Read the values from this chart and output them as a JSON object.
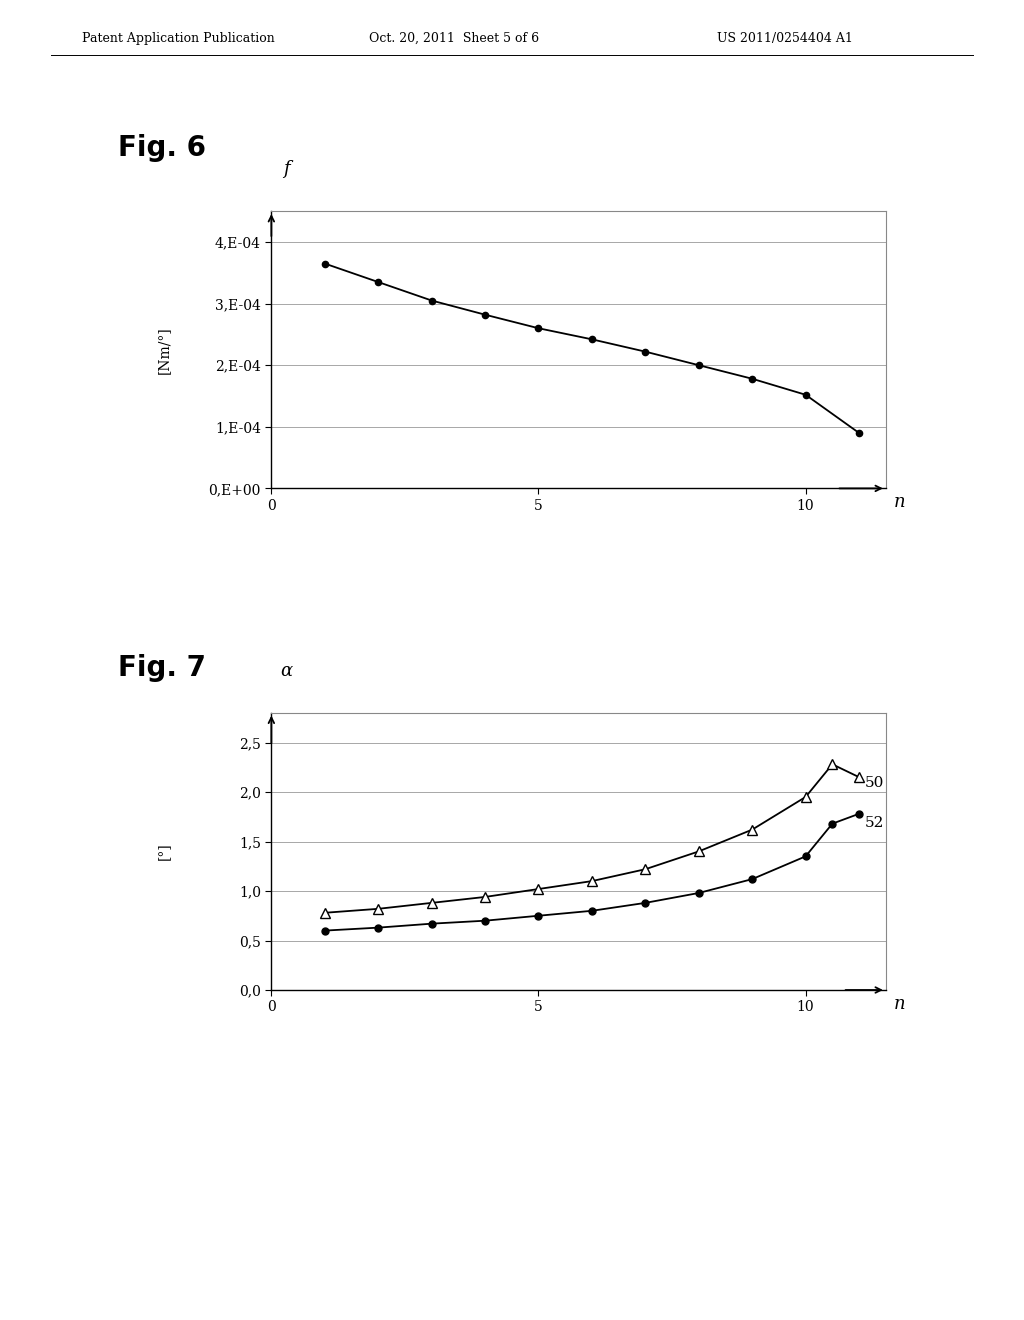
{
  "header_left": "Patent Application Publication",
  "header_center": "Oct. 20, 2011  Sheet 5 of 6",
  "header_right": "US 2011/0254404 A1",
  "fig6_label": "Fig. 6",
  "fig7_label": "Fig. 7",
  "fig6": {
    "x": [
      1,
      2,
      3,
      4,
      5,
      6,
      7,
      8,
      9,
      10,
      11
    ],
    "y": [
      0.000365,
      0.000335,
      0.000305,
      0.000282,
      0.00026,
      0.000242,
      0.000222,
      0.0002,
      0.000178,
      0.000152,
      9e-05
    ],
    "xlabel": "n",
    "ylabel": "f",
    "ylabel2": "[Nm/°]",
    "yticks": [
      0,
      0.0001,
      0.0002,
      0.0003,
      0.0004
    ],
    "ytick_labels": [
      "0,E+00",
      "1,E-04",
      "2,E-04",
      "3,E-04",
      "4,E-04"
    ],
    "xticks": [
      0,
      5,
      10
    ],
    "xtick_labels": [
      "0",
      "5",
      "10"
    ],
    "xlim": [
      0,
      11.5
    ],
    "ylim": [
      0,
      0.00045
    ]
  },
  "fig7": {
    "series50_x": [
      1,
      2,
      3,
      4,
      5,
      6,
      7,
      8,
      9,
      10,
      10.5,
      11
    ],
    "series50_y": [
      0.78,
      0.82,
      0.88,
      0.94,
      1.02,
      1.1,
      1.22,
      1.4,
      1.62,
      1.95,
      2.28,
      2.15
    ],
    "series52_x": [
      1,
      2,
      3,
      4,
      5,
      6,
      7,
      8,
      9,
      10,
      10.5,
      11
    ],
    "series52_y": [
      0.6,
      0.63,
      0.67,
      0.7,
      0.75,
      0.8,
      0.88,
      0.98,
      1.12,
      1.35,
      1.68,
      1.78
    ],
    "xlabel": "n",
    "ylabel": "α",
    "ylabel2": "[°]",
    "yticks": [
      0.0,
      0.5,
      1.0,
      1.5,
      2.0,
      2.5
    ],
    "ytick_labels": [
      "0,0",
      "0,5",
      "1,0",
      "1,5",
      "2,0",
      "2,5"
    ],
    "xticks": [
      0,
      5,
      10
    ],
    "xtick_labels": [
      "0",
      "5",
      "10"
    ],
    "xlim": [
      0,
      11.5
    ],
    "ylim": [
      0,
      2.8
    ],
    "label50": "50",
    "label52": "52"
  },
  "bg_color": "#ffffff",
  "axes_color": "#000000",
  "grid_color": "#999999",
  "line_color": "#000000"
}
